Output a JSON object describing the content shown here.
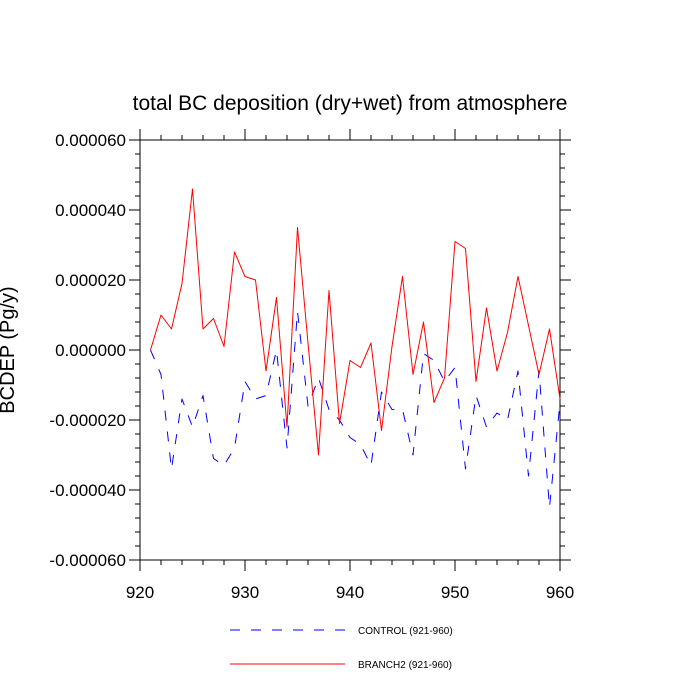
{
  "chart_data": {
    "type": "line",
    "title": "total BC deposition (dry+wet) from atmosphere",
    "xlabel": "",
    "ylabel": "BCDEP (Pg/y)",
    "xlim": [
      920,
      960
    ],
    "ylim": [
      -6e-05,
      6e-05
    ],
    "x_ticks": [
      920,
      930,
      940,
      950,
      960
    ],
    "x_tick_labels": [
      "920",
      "930",
      "940",
      "950",
      "960"
    ],
    "y_ticks": [
      6e-05,
      4e-05,
      2e-05,
      0,
      -2e-05,
      -4e-05,
      -6e-05
    ],
    "y_tick_labels": [
      "0.000060",
      "0.000040",
      "0.000020",
      "0.000000",
      "-0.000020",
      "-0.000040",
      "-0.000060"
    ],
    "grid": false,
    "legend_position": "bottom-center",
    "series": [
      {
        "name": "CONTROL (921-960)",
        "color": "#0000ff",
        "style": "dashed",
        "x": [
          921,
          922,
          923,
          924,
          925,
          926,
          927,
          928,
          929,
          930,
          931,
          932,
          933,
          934,
          935,
          936,
          937,
          938,
          939,
          940,
          941,
          942,
          943,
          944,
          945,
          946,
          947,
          948,
          949,
          950,
          951,
          952,
          953,
          954,
          955,
          956,
          957,
          958,
          959,
          960
        ],
        "y": [
          0.0,
          -7e-06,
          -3.4e-05,
          -1.4e-05,
          -2.2e-05,
          -1.3e-05,
          -3.1e-05,
          -3.3e-05,
          -2.8e-05,
          -9e-06,
          -1.4e-05,
          -1.3e-05,
          0.0,
          -2.8e-05,
          1.1e-05,
          -1.6e-05,
          -8e-06,
          -1.7e-05,
          -2e-05,
          -2.5e-05,
          -2.7e-05,
          -3.3e-05,
          -1.2e-05,
          -1.7e-05,
          -1.7e-05,
          -3e-05,
          -1e-06,
          -3e-06,
          -9e-06,
          -5e-06,
          -3.4e-05,
          -1.3e-05,
          -2.2e-05,
          -1.8e-05,
          -2e-05,
          -6e-06,
          -3.6e-05,
          -6e-06,
          -4.5e-05,
          -1.5e-05
        ]
      },
      {
        "name": "BRANCH2 (921-960)",
        "color": "#ff0000",
        "style": "solid",
        "x": [
          921,
          922,
          923,
          924,
          925,
          926,
          927,
          928,
          929,
          930,
          931,
          932,
          933,
          934,
          935,
          936,
          937,
          938,
          939,
          940,
          941,
          942,
          943,
          944,
          945,
          946,
          947,
          948,
          949,
          950,
          951,
          952,
          953,
          954,
          955,
          956,
          957,
          958,
          959,
          960
        ],
        "y": [
          0.0,
          1e-05,
          6e-06,
          1.9e-05,
          4.6e-05,
          6e-06,
          9e-06,
          1e-06,
          2.8e-05,
          2.1e-05,
          2e-05,
          -6e-06,
          1.5e-05,
          -2.2e-05,
          3.5e-05,
          2e-06,
          -3e-05,
          1.7e-05,
          -2.1e-05,
          -3e-06,
          -5e-06,
          2e-06,
          -2.3e-05,
          1e-06,
          2.1e-05,
          -7e-06,
          8e-06,
          -1.5e-05,
          -8e-06,
          3.1e-05,
          2.9e-05,
          -9e-06,
          1.2e-05,
          -6e-06,
          5e-06,
          2.1e-05,
          7e-06,
          -7e-06,
          6e-06,
          -1.4e-05
        ]
      }
    ]
  }
}
